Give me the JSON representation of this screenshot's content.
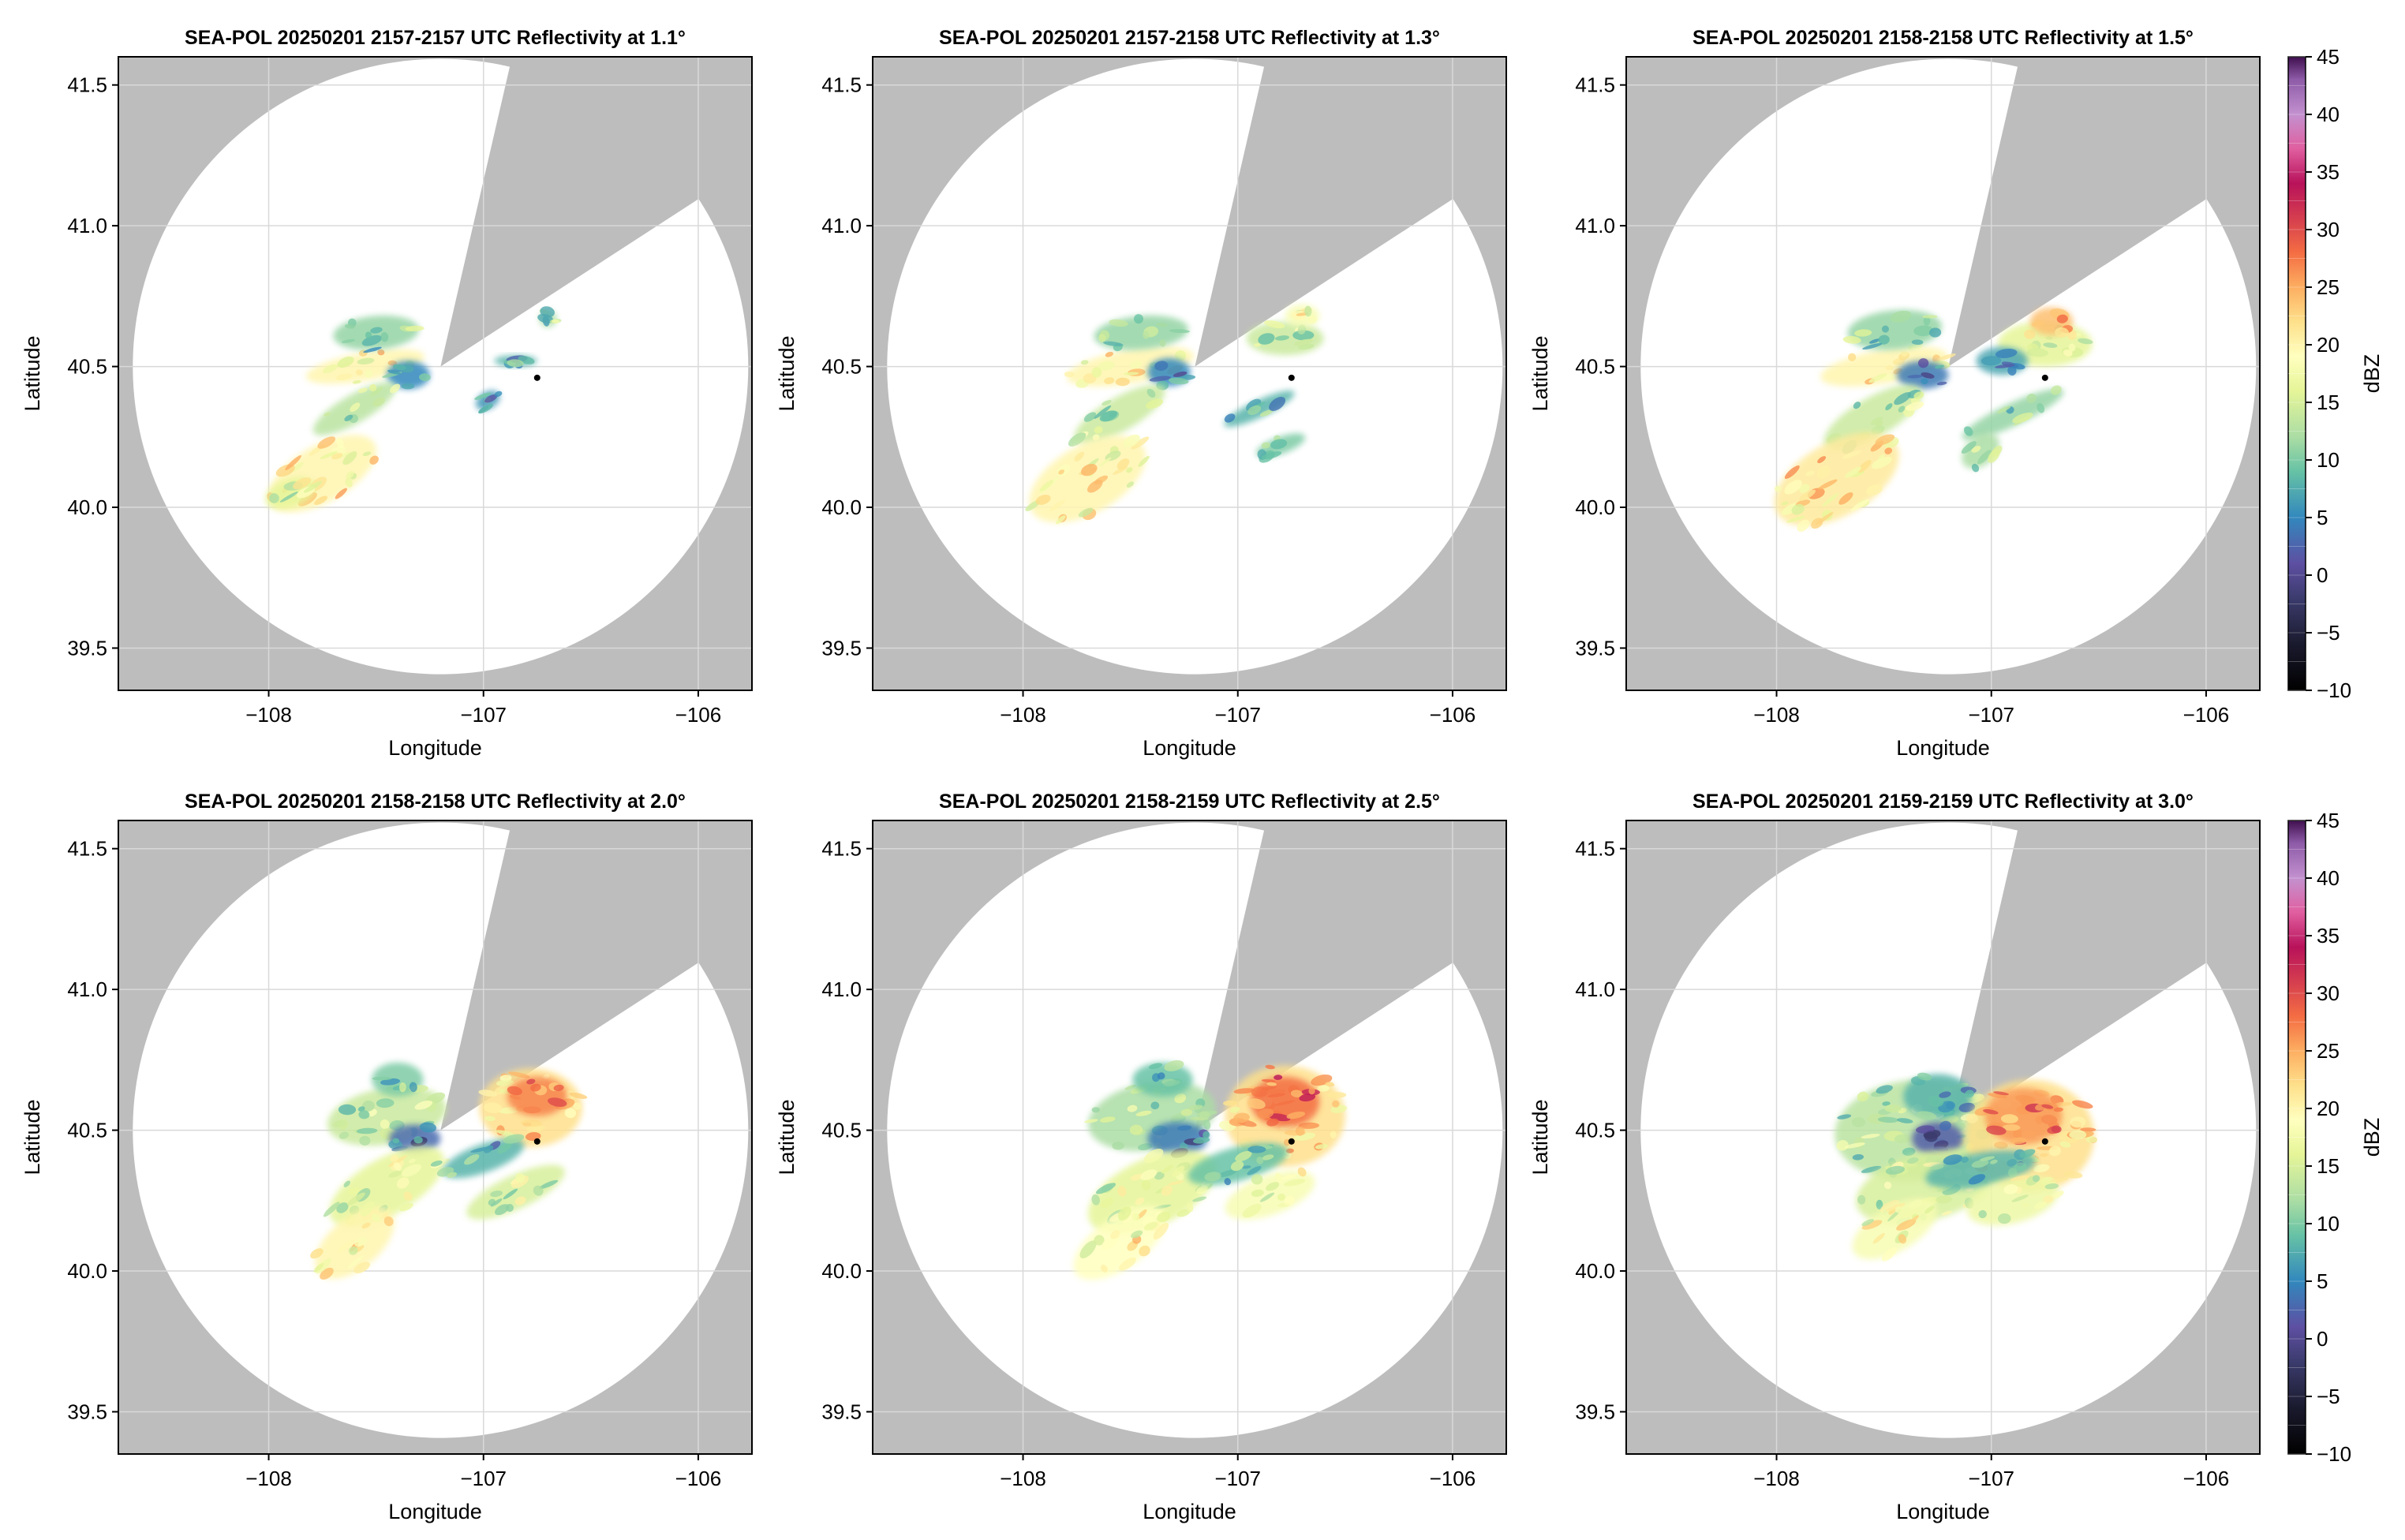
{
  "colors": {
    "outside_coverage": "#bdbdbd",
    "coverage": "#ffffff",
    "grid": "#d9d9d9",
    "frame": "#000000"
  },
  "colorbar": {
    "label": "dBZ",
    "ticks": [
      -10,
      -5,
      0,
      5,
      10,
      15,
      20,
      25,
      30,
      35,
      40,
      45
    ],
    "tick_labels": [
      "−10",
      "−5",
      "0",
      "5",
      "10",
      "15",
      "20",
      "25",
      "30",
      "35",
      "40",
      "45"
    ],
    "range": [
      -10,
      45
    ],
    "colormap": "Spectral (reversed, dark purple top to black bottom)"
  },
  "chart_data": [
    {
      "type": "heatmap",
      "title": "SEA-POL 20250201 2157-2157 UTC Reflectivity at 1.1°",
      "xlabel": "Longitude",
      "ylabel": "Latitude",
      "xlim": [
        -108.7,
        -105.75
      ],
      "ylim": [
        39.35,
        41.6
      ],
      "xticks": [
        -108,
        -107,
        -106
      ],
      "xtick_labels": [
        "−108",
        "−107",
        "−106"
      ],
      "yticks": [
        39.5,
        40.0,
        40.5,
        41.0,
        41.5
      ],
      "ytick_labels": [
        "39.5",
        "40.0",
        "40.5",
        "41.0",
        "41.5"
      ],
      "grid": true,
      "radar_center": [
        -107.2,
        40.5
      ],
      "marker": [
        -106.75,
        40.46
      ],
      "echoes": [
        {
          "lon": -107.55,
          "lat": 40.5,
          "rx": 0.28,
          "ry": 0.05,
          "rot": -10,
          "dbz": 20
        },
        {
          "lon": -107.35,
          "lat": 40.47,
          "rx": 0.1,
          "ry": 0.05,
          "rot": 0,
          "dbz": 5
        },
        {
          "lon": -107.5,
          "lat": 40.62,
          "rx": 0.2,
          "ry": 0.06,
          "rot": -5,
          "dbz": 11
        },
        {
          "lon": -107.6,
          "lat": 40.35,
          "rx": 0.22,
          "ry": 0.05,
          "rot": -30,
          "dbz": 13
        },
        {
          "lon": -107.75,
          "lat": 40.12,
          "rx": 0.28,
          "ry": 0.1,
          "rot": -30,
          "dbz": 20
        },
        {
          "lon": -107.9,
          "lat": 40.05,
          "rx": 0.12,
          "ry": 0.05,
          "rot": -20,
          "dbz": 16
        },
        {
          "lon": -106.85,
          "lat": 40.52,
          "rx": 0.1,
          "ry": 0.02,
          "rot": 0,
          "dbz": 8
        },
        {
          "lon": -106.98,
          "lat": 40.38,
          "rx": 0.06,
          "ry": 0.03,
          "rot": -30,
          "dbz": 6
        },
        {
          "lon": -106.7,
          "lat": 40.67,
          "rx": 0.04,
          "ry": 0.03,
          "rot": 0,
          "dbz": 12
        }
      ]
    },
    {
      "type": "heatmap",
      "title": "SEA-POL 20250201 2157-2158 UTC Reflectivity at 1.3°",
      "xlabel": "Longitude",
      "ylabel": "Latitude",
      "xlim": [
        -108.7,
        -105.75
      ],
      "ylim": [
        39.35,
        41.6
      ],
      "xticks": [
        -108,
        -107,
        -106
      ],
      "xtick_labels": [
        "−108",
        "−107",
        "−106"
      ],
      "yticks": [
        39.5,
        40.0,
        40.5,
        41.0,
        41.5
      ],
      "ytick_labels": [
        "39.5",
        "40.0",
        "40.5",
        "41.0",
        "41.5"
      ],
      "grid": true,
      "radar_center": [
        -107.2,
        40.5
      ],
      "marker": [
        -106.75,
        40.46
      ],
      "echoes": [
        {
          "lon": -107.5,
          "lat": 40.5,
          "rx": 0.3,
          "ry": 0.06,
          "rot": -10,
          "dbz": 20
        },
        {
          "lon": -107.32,
          "lat": 40.48,
          "rx": 0.1,
          "ry": 0.05,
          "rot": 0,
          "dbz": 5
        },
        {
          "lon": -107.45,
          "lat": 40.62,
          "rx": 0.22,
          "ry": 0.06,
          "rot": -5,
          "dbz": 11
        },
        {
          "lon": -107.55,
          "lat": 40.33,
          "rx": 0.24,
          "ry": 0.06,
          "rot": -30,
          "dbz": 14
        },
        {
          "lon": -107.7,
          "lat": 40.1,
          "rx": 0.3,
          "ry": 0.12,
          "rot": -30,
          "dbz": 20
        },
        {
          "lon": -106.78,
          "lat": 40.6,
          "rx": 0.18,
          "ry": 0.06,
          "rot": 0,
          "dbz": 14
        },
        {
          "lon": -106.7,
          "lat": 40.68,
          "rx": 0.08,
          "ry": 0.04,
          "rot": 0,
          "dbz": 18
        },
        {
          "lon": -106.9,
          "lat": 40.35,
          "rx": 0.18,
          "ry": 0.03,
          "rot": -25,
          "dbz": 8
        },
        {
          "lon": -106.8,
          "lat": 40.22,
          "rx": 0.12,
          "ry": 0.03,
          "rot": -20,
          "dbz": 10
        }
      ]
    },
    {
      "type": "heatmap",
      "title": "SEA-POL 20250201 2158-2158 UTC Reflectivity at 1.5°",
      "xlabel": "Longitude",
      "ylabel": "Latitude",
      "xlim": [
        -108.7,
        -105.75
      ],
      "ylim": [
        39.35,
        41.6
      ],
      "xticks": [
        -108,
        -107,
        -106
      ],
      "xtick_labels": [
        "−108",
        "−107",
        "−106"
      ],
      "yticks": [
        39.5,
        40.0,
        40.5,
        41.0,
        41.5
      ],
      "ytick_labels": [
        "39.5",
        "40.0",
        "40.5",
        "41.0",
        "41.5"
      ],
      "grid": true,
      "radar_center": [
        -107.2,
        40.5
      ],
      "marker": [
        -106.75,
        40.46
      ],
      "echoes": [
        {
          "lon": -107.5,
          "lat": 40.5,
          "rx": 0.3,
          "ry": 0.06,
          "rot": -10,
          "dbz": 20
        },
        {
          "lon": -107.32,
          "lat": 40.47,
          "rx": 0.12,
          "ry": 0.05,
          "rot": 0,
          "dbz": 4
        },
        {
          "lon": -107.45,
          "lat": 40.63,
          "rx": 0.22,
          "ry": 0.07,
          "rot": -5,
          "dbz": 11
        },
        {
          "lon": -107.55,
          "lat": 40.32,
          "rx": 0.26,
          "ry": 0.07,
          "rot": -30,
          "dbz": 14
        },
        {
          "lon": -107.72,
          "lat": 40.1,
          "rx": 0.32,
          "ry": 0.13,
          "rot": -30,
          "dbz": 21
        },
        {
          "lon": -106.75,
          "lat": 40.58,
          "rx": 0.22,
          "ry": 0.08,
          "rot": 0,
          "dbz": 16
        },
        {
          "lon": -106.72,
          "lat": 40.66,
          "rx": 0.1,
          "ry": 0.05,
          "rot": 0,
          "dbz": 24
        },
        {
          "lon": -106.95,
          "lat": 40.52,
          "rx": 0.12,
          "ry": 0.05,
          "rot": 0,
          "dbz": 7
        },
        {
          "lon": -106.9,
          "lat": 40.33,
          "rx": 0.26,
          "ry": 0.04,
          "rot": -25,
          "dbz": 11
        },
        {
          "lon": -107.05,
          "lat": 40.2,
          "rx": 0.1,
          "ry": 0.05,
          "rot": -40,
          "dbz": 12
        }
      ]
    },
    {
      "type": "heatmap",
      "title": "SEA-POL 20250201 2158-2158 UTC Reflectivity at 2.0°",
      "xlabel": "Longitude",
      "ylabel": "Latitude",
      "xlim": [
        -108.7,
        -105.75
      ],
      "ylim": [
        39.35,
        41.6
      ],
      "xticks": [
        -108,
        -107,
        -106
      ],
      "xtick_labels": [
        "−108",
        "−107",
        "−106"
      ],
      "yticks": [
        39.5,
        40.0,
        40.5,
        41.0,
        41.5
      ],
      "ytick_labels": [
        "39.5",
        "40.0",
        "40.5",
        "41.0",
        "41.5"
      ],
      "grid": true,
      "radar_center": [
        -107.2,
        40.5
      ],
      "marker": [
        -106.75,
        40.46
      ],
      "echoes": [
        {
          "lon": -107.45,
          "lat": 40.55,
          "rx": 0.28,
          "ry": 0.1,
          "rot": -10,
          "dbz": 14
        },
        {
          "lon": -107.32,
          "lat": 40.47,
          "rx": 0.12,
          "ry": 0.05,
          "rot": 0,
          "dbz": 3
        },
        {
          "lon": -107.4,
          "lat": 40.68,
          "rx": 0.12,
          "ry": 0.06,
          "rot": 0,
          "dbz": 10
        },
        {
          "lon": -107.45,
          "lat": 40.3,
          "rx": 0.3,
          "ry": 0.1,
          "rot": -30,
          "dbz": 16
        },
        {
          "lon": -107.6,
          "lat": 40.1,
          "rx": 0.22,
          "ry": 0.09,
          "rot": -40,
          "dbz": 20
        },
        {
          "lon": -106.78,
          "lat": 40.58,
          "rx": 0.24,
          "ry": 0.14,
          "rot": 0,
          "dbz": 22
        },
        {
          "lon": -106.75,
          "lat": 40.62,
          "rx": 0.14,
          "ry": 0.07,
          "rot": 0,
          "dbz": 27
        },
        {
          "lon": -107.0,
          "lat": 40.4,
          "rx": 0.2,
          "ry": 0.05,
          "rot": -20,
          "dbz": 8
        },
        {
          "lon": -106.85,
          "lat": 40.28,
          "rx": 0.25,
          "ry": 0.06,
          "rot": -25,
          "dbz": 15
        }
      ]
    },
    {
      "type": "heatmap",
      "title": "SEA-POL 20250201 2158-2159 UTC Reflectivity at 2.5°",
      "xlabel": "Longitude",
      "ylabel": "Latitude",
      "xlim": [
        -108.7,
        -105.75
      ],
      "ylim": [
        39.35,
        41.6
      ],
      "xticks": [
        -108,
        -107,
        -106
      ],
      "xtick_labels": [
        "−108",
        "−107",
        "−106"
      ],
      "yticks": [
        39.5,
        40.0,
        40.5,
        41.0,
        41.5
      ],
      "ytick_labels": [
        "39.5",
        "40.0",
        "40.5",
        "41.0",
        "41.5"
      ],
      "grid": true,
      "radar_center": [
        -107.2,
        40.5
      ],
      "marker": [
        -106.75,
        40.46
      ],
      "echoes": [
        {
          "lon": -107.4,
          "lat": 40.55,
          "rx": 0.3,
          "ry": 0.12,
          "rot": -10,
          "dbz": 12
        },
        {
          "lon": -107.28,
          "lat": 40.47,
          "rx": 0.14,
          "ry": 0.06,
          "rot": 0,
          "dbz": 4
        },
        {
          "lon": -107.35,
          "lat": 40.68,
          "rx": 0.14,
          "ry": 0.06,
          "rot": 0,
          "dbz": 9
        },
        {
          "lon": -107.4,
          "lat": 40.28,
          "rx": 0.32,
          "ry": 0.12,
          "rot": -25,
          "dbz": 16
        },
        {
          "lon": -107.55,
          "lat": 40.1,
          "rx": 0.25,
          "ry": 0.09,
          "rot": -35,
          "dbz": 19
        },
        {
          "lon": -106.78,
          "lat": 40.55,
          "rx": 0.28,
          "ry": 0.18,
          "rot": 0,
          "dbz": 22
        },
        {
          "lon": -106.78,
          "lat": 40.6,
          "rx": 0.16,
          "ry": 0.09,
          "rot": 0,
          "dbz": 28
        },
        {
          "lon": -107.0,
          "lat": 40.38,
          "rx": 0.24,
          "ry": 0.06,
          "rot": -15,
          "dbz": 9
        },
        {
          "lon": -106.85,
          "lat": 40.27,
          "rx": 0.22,
          "ry": 0.07,
          "rot": -20,
          "dbz": 18
        }
      ]
    },
    {
      "type": "heatmap",
      "title": "SEA-POL 20250201 2159-2159 UTC Reflectivity at 3.0°",
      "xlabel": "Longitude",
      "ylabel": "Latitude",
      "xlim": [
        -108.7,
        -105.75
      ],
      "ylim": [
        39.35,
        41.6
      ],
      "xticks": [
        -108,
        -107,
        -106
      ],
      "xtick_labels": [
        "−108",
        "−107",
        "−106"
      ],
      "yticks": [
        39.5,
        40.0,
        40.5,
        41.0,
        41.5
      ],
      "ytick_labels": [
        "39.5",
        "40.0",
        "40.5",
        "41.0",
        "41.5"
      ],
      "grid": true,
      "radar_center": [
        -107.2,
        40.5
      ],
      "marker": [
        -106.75,
        40.46
      ],
      "echoes": [
        {
          "lon": -107.35,
          "lat": 40.5,
          "rx": 0.38,
          "ry": 0.18,
          "rot": -5,
          "dbz": 13
        },
        {
          "lon": -107.25,
          "lat": 40.47,
          "rx": 0.12,
          "ry": 0.06,
          "rot": 0,
          "dbz": 2
        },
        {
          "lon": -107.25,
          "lat": 40.62,
          "rx": 0.16,
          "ry": 0.08,
          "rot": 0,
          "dbz": 8
        },
        {
          "lon": -107.3,
          "lat": 40.3,
          "rx": 0.34,
          "ry": 0.12,
          "rot": -15,
          "dbz": 15
        },
        {
          "lon": -107.45,
          "lat": 40.15,
          "rx": 0.22,
          "ry": 0.08,
          "rot": -30,
          "dbz": 18
        },
        {
          "lon": -106.82,
          "lat": 40.48,
          "rx": 0.3,
          "ry": 0.2,
          "rot": 0,
          "dbz": 22
        },
        {
          "lon": -106.85,
          "lat": 40.55,
          "rx": 0.18,
          "ry": 0.1,
          "rot": 0,
          "dbz": 26
        },
        {
          "lon": -107.05,
          "lat": 40.36,
          "rx": 0.26,
          "ry": 0.06,
          "rot": -10,
          "dbz": 8
        },
        {
          "lon": -106.9,
          "lat": 40.25,
          "rx": 0.22,
          "ry": 0.08,
          "rot": -15,
          "dbz": 17
        }
      ]
    }
  ]
}
